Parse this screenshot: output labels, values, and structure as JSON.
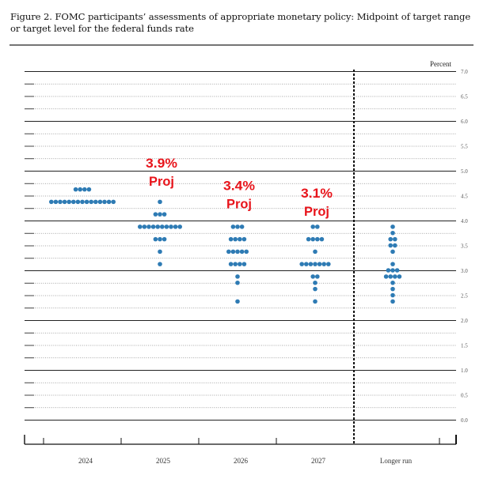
{
  "title_line1": "Figure 2.  FOMC participants’ assessments of appropriate monetary policy:  Midpoint of target range",
  "title_line2": "or target level for the federal funds rate",
  "chart_data": {
    "type": "scatter",
    "title": "FOMC participants’ assessments of appropriate monetary policy: Midpoint of target range or target level for the federal funds rate",
    "ylabel": "Percent",
    "ylim": [
      0,
      7.0
    ],
    "yticks": [
      "0.0",
      "0.5",
      "1.0",
      "1.5",
      "2.0",
      "2.5",
      "3.0",
      "3.5",
      "4.0",
      "4.5",
      "5.0",
      "5.5",
      "6.0",
      "6.5",
      "7.0"
    ],
    "grid_step": 0.25,
    "categories": [
      "2024",
      "2025",
      "2026",
      "2027",
      "Longer run"
    ],
    "dots": [
      {
        "category": "2024",
        "levels": [
          {
            "rate": 4.625,
            "count": 4
          },
          {
            "rate": 4.375,
            "count": 15
          }
        ]
      },
      {
        "category": "2025",
        "levels": [
          {
            "rate": 4.375,
            "count": 1
          },
          {
            "rate": 4.125,
            "count": 3
          },
          {
            "rate": 3.875,
            "count": 10
          },
          {
            "rate": 3.625,
            "count": 3
          },
          {
            "rate": 3.375,
            "count": 1
          },
          {
            "rate": 3.125,
            "count": 1
          }
        ]
      },
      {
        "category": "2026",
        "levels": [
          {
            "rate": 3.875,
            "count": 3
          },
          {
            "rate": 3.625,
            "count": 4
          },
          {
            "rate": 3.375,
            "count": 5
          },
          {
            "rate": 3.125,
            "count": 4
          },
          {
            "rate": 2.875,
            "count": 1
          },
          {
            "rate": 2.75,
            "count": 1
          },
          {
            "rate": 2.375,
            "count": 1
          }
        ]
      },
      {
        "category": "2027",
        "levels": [
          {
            "rate": 3.875,
            "count": 2
          },
          {
            "rate": 3.625,
            "count": 4
          },
          {
            "rate": 3.375,
            "count": 1
          },
          {
            "rate": 3.125,
            "count": 7
          },
          {
            "rate": 2.875,
            "count": 2
          },
          {
            "rate": 2.75,
            "count": 1
          },
          {
            "rate": 2.625,
            "count": 1
          },
          {
            "rate": 2.375,
            "count": 1
          }
        ]
      },
      {
        "category": "Longer run",
        "levels": [
          {
            "rate": 3.875,
            "count": 1
          },
          {
            "rate": 3.75,
            "count": 1
          },
          {
            "rate": 3.625,
            "count": 2
          },
          {
            "rate": 3.5,
            "count": 2
          },
          {
            "rate": 3.375,
            "count": 1
          },
          {
            "rate": 3.125,
            "count": 1
          },
          {
            "rate": 3.0,
            "count": 3
          },
          {
            "rate": 2.875,
            "count": 4
          },
          {
            "rate": 2.75,
            "count": 1
          },
          {
            "rate": 2.625,
            "count": 1
          },
          {
            "rate": 2.5,
            "count": 1
          },
          {
            "rate": 2.375,
            "count": 1
          }
        ]
      }
    ],
    "annotations": [
      {
        "category": "2025",
        "value": "3.9%",
        "label": "Proj",
        "rate": 5.0
      },
      {
        "category": "2026",
        "value": "3.4%",
        "label": "Proj",
        "rate": 4.55
      },
      {
        "category": "2027",
        "value": "3.1%",
        "label": "Proj",
        "rate": 4.4
      }
    ],
    "dot_color": "#2e7bb4",
    "annotation_color": "#e8141b"
  }
}
